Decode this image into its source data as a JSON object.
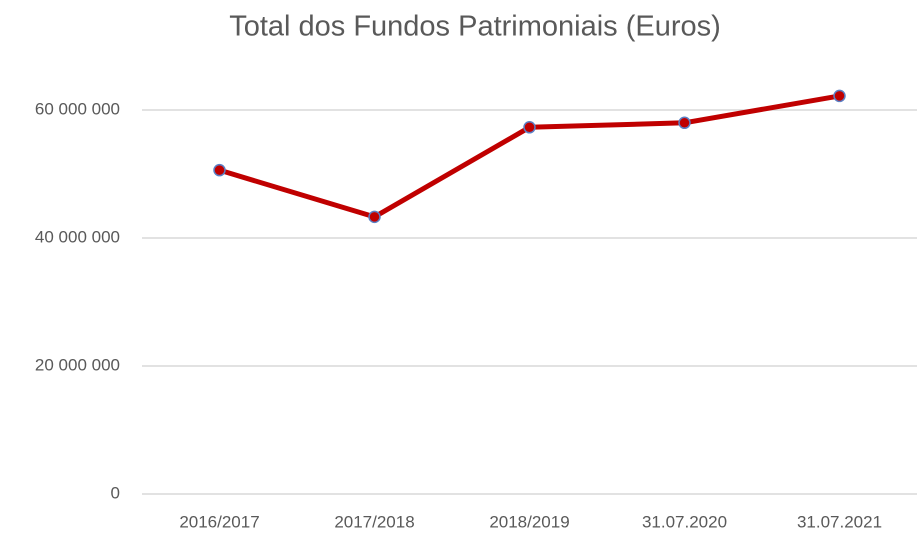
{
  "chart_data": {
    "type": "line",
    "title": "Total dos Fundos Patrimoniais (Euros)",
    "categories": [
      "2016/2017",
      "2017/2018",
      "2018/2019",
      "31.07.2020",
      "31.07.2021"
    ],
    "series": [
      {
        "name": "Total dos Fundos Patrimoniais",
        "color": "#c00000",
        "marker_edge_color": "#5b7fc4",
        "values": [
          50600000,
          43300000,
          57300000,
          58000000,
          62200000
        ]
      }
    ],
    "ylim": [
      0,
      70000000
    ],
    "yticks": [
      0,
      {
        "value": 20000000,
        "label": "20 000 000"
      },
      {
        "value": 40000000,
        "label": "40 000 000"
      },
      {
        "value": 60000000,
        "label": "60 000 000"
      }
    ],
    "grid": true
  }
}
